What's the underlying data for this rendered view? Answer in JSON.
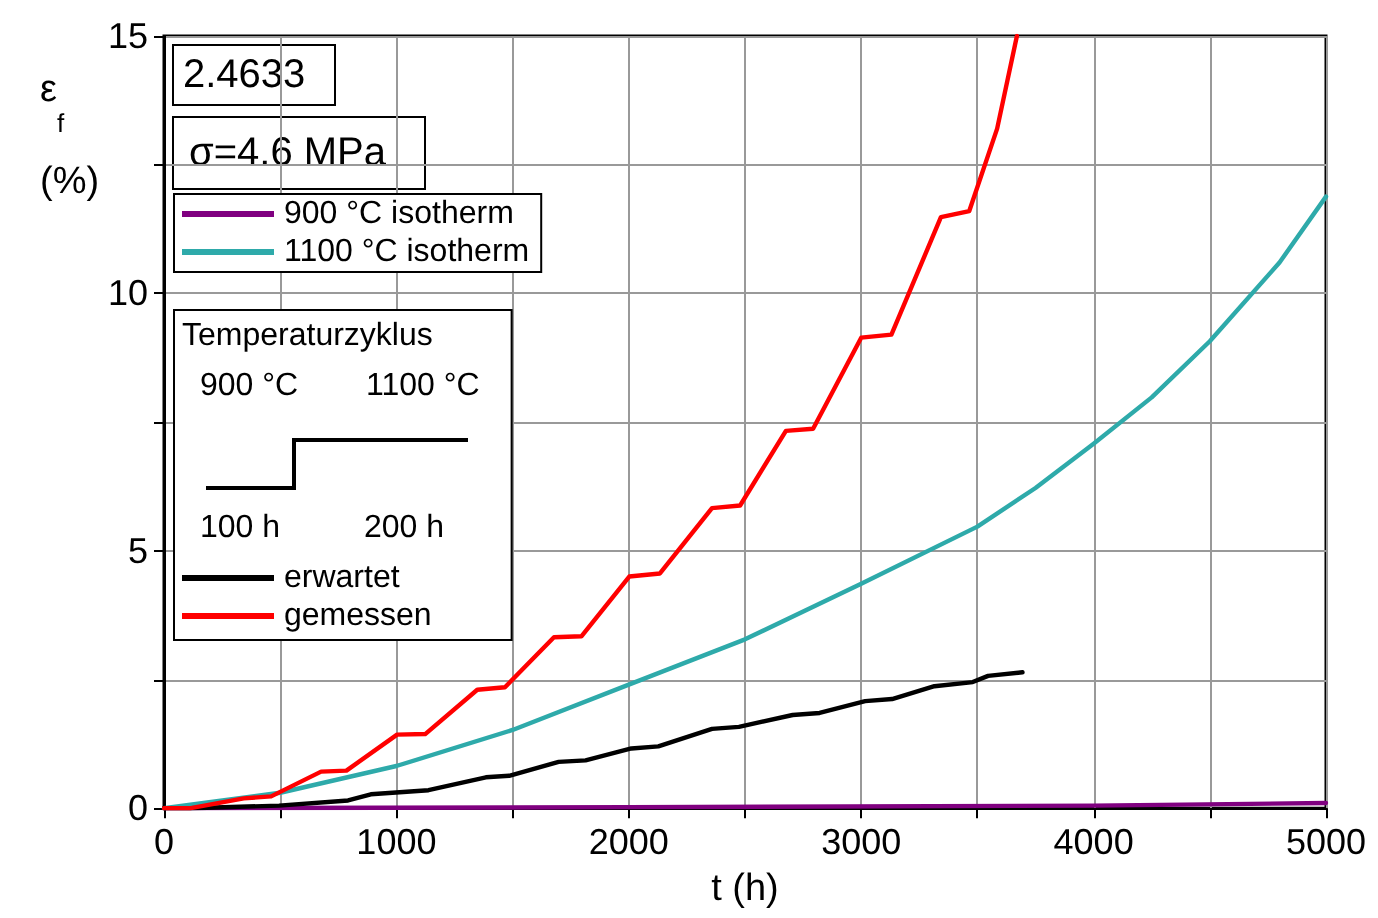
{
  "chart_data": {
    "type": "line",
    "xlabel": "t (h)",
    "ylabel": "ε$_{f}$ (%)",
    "annotations": [
      "2.4633",
      "σ=4.6 MPa",
      "Temperaturzyklus",
      "900 °C",
      "1100 °C",
      "100 h",
      "200 h"
    ],
    "series": [
      {
        "name": "900 °C isotherm",
        "color": "#800080",
        "x": [
          0,
          2000,
          4000,
          5000
        ],
        "values": [
          0,
          0.02,
          0.05,
          0.1
        ]
      },
      {
        "name": "1100 °C isotherm",
        "color": "#2eaaaa",
        "x": [
          0,
          500,
          1000,
          1500,
          2000,
          2500,
          3000,
          3500,
          3750,
          4000,
          4250,
          4500,
          4800,
          5000
        ],
        "values": [
          0,
          0.3,
          0.82,
          1.52,
          2.4,
          3.28,
          4.36,
          5.47,
          6.22,
          7.08,
          7.98,
          9.07,
          10.6,
          11.88
        ]
      },
      {
        "name": "erwartet",
        "color": "#000000",
        "x": [
          0,
          115,
          495,
          792,
          890,
          1138,
          1385,
          1485,
          1698,
          1814,
          2011,
          2127,
          2358,
          2474,
          2705,
          2821,
          3017,
          3133,
          3315,
          3480,
          3546,
          3694
        ],
        "values": [
          0,
          0,
          0.05,
          0.15,
          0.27,
          0.35,
          0.6,
          0.63,
          0.9,
          0.93,
          1.16,
          1.2,
          1.54,
          1.58,
          1.81,
          1.85,
          2.08,
          2.12,
          2.37,
          2.45,
          2.57,
          2.64
        ]
      },
      {
        "name": "gemessen",
        "color": "#ff0000",
        "x": [
          0,
          115,
          343,
          461,
          676,
          785,
          1003,
          1124,
          1348,
          1467,
          1678,
          1796,
          2002,
          2134,
          2358,
          2479,
          2676,
          2793,
          3000,
          3130,
          3343,
          3465,
          3585,
          3670
        ],
        "values": [
          0,
          0,
          0.19,
          0.23,
          0.71,
          0.73,
          1.43,
          1.44,
          2.3,
          2.35,
          3.32,
          3.34,
          4.5,
          4.56,
          5.83,
          5.88,
          7.33,
          7.37,
          9.14,
          9.2,
          11.48,
          11.6,
          13.2,
          15
        ]
      }
    ],
    "xlim": [
      0,
      5000
    ],
    "xticks": [
      0,
      {
        "value": 500,
        "label": null
      },
      1000,
      {
        "value": 1500,
        "label": null
      },
      2000,
      {
        "value": 2500,
        "label": null
      },
      3000,
      {
        "value": 3500,
        "label": null
      },
      4000,
      {
        "value": 4500,
        "label": null
      },
      5000
    ],
    "ylim": [
      0,
      15
    ],
    "yticks": [
      0,
      {
        "value": 2.5,
        "label": null
      },
      5,
      {
        "value": 7.5,
        "label": null
      },
      10,
      {
        "value": 12.5,
        "label": null
      },
      15
    ],
    "grid": true,
    "legend": "top left",
    "marker": "none",
    "line_style": "solid"
  }
}
